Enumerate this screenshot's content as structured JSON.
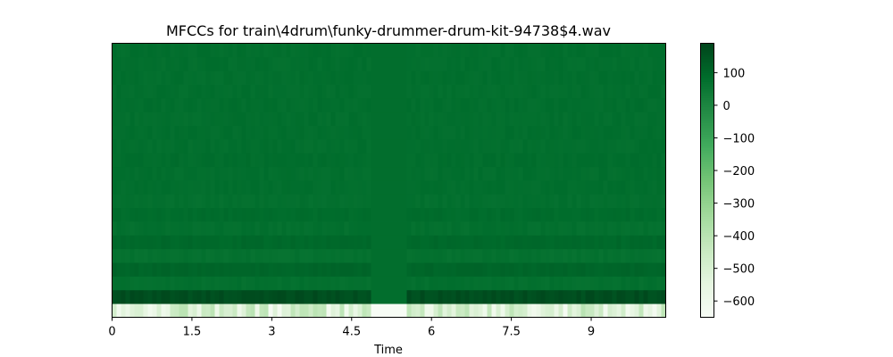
{
  "chart_data": {
    "type": "heatmap",
    "title": "MFCCs for train\\4drum\\funky-drummer-drum-kit-94738$4.wav",
    "xlabel": "Time",
    "ylabel": "",
    "xlim": [
      0,
      10.4
    ],
    "x_ticks": [
      0,
      1.5,
      3,
      4.5,
      6,
      7.5,
      9
    ],
    "x_tick_labels": [
      "0",
      "1.5",
      "3",
      "4.5",
      "6",
      "7.5",
      "9"
    ],
    "n_coefficients": 20,
    "silent_interval": [
      4.9,
      5.5
    ],
    "colormap": "Greens",
    "colorbar": {
      "range": [
        -650,
        190
      ],
      "ticks": [
        100,
        0,
        -100,
        -200,
        -300,
        -400,
        -500,
        -600
      ],
      "tick_labels": [
        "100",
        "0",
        "−100",
        "−200",
        "−300",
        "−400",
        "−500",
        "−600"
      ]
    },
    "coefficient_levels": [
      -520,
      165,
      75,
      105,
      70,
      95,
      75,
      85,
      75,
      80,
      78,
      82,
      78,
      80,
      78,
      80,
      78,
      79,
      78,
      79
    ],
    "silence_levels": [
      -650,
      80,
      80,
      80,
      80,
      80,
      80,
      80,
      80,
      80,
      80,
      80,
      80,
      80,
      80,
      80,
      80,
      80,
      80,
      80
    ]
  }
}
